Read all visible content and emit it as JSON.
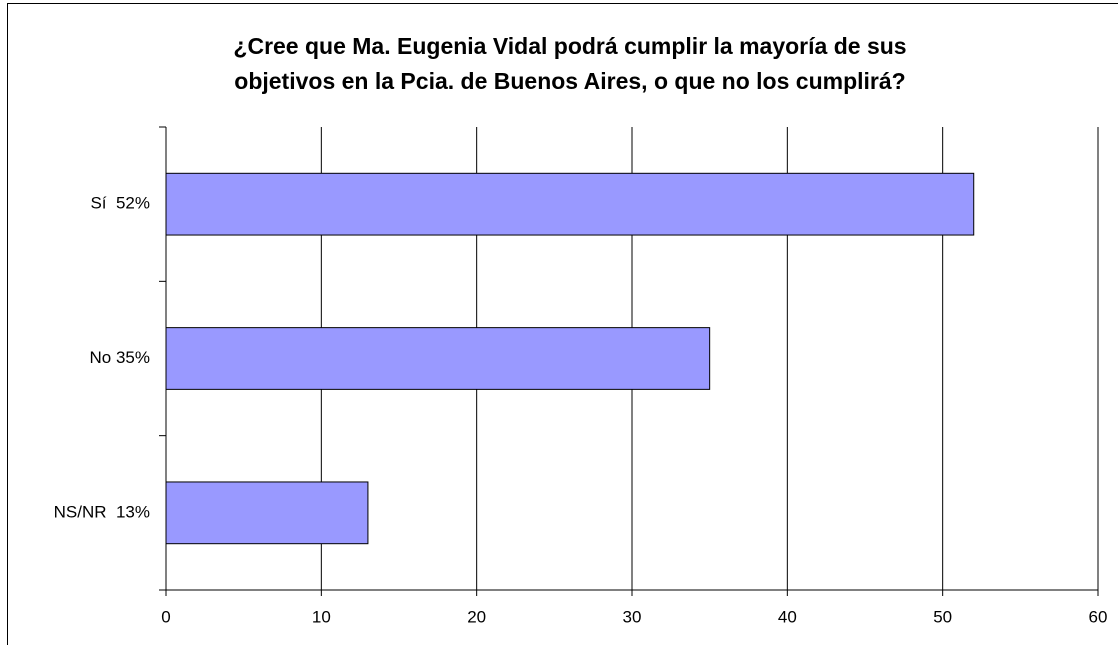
{
  "chart_data": {
    "type": "bar",
    "orientation": "horizontal",
    "title": [
      "¿Cree que Ma. Eugenia Vidal podrá cumplir la mayoría de sus",
      "objetivos en la Pcia. de Buenos Aires, o que no los cumplirá?"
    ],
    "categories": [
      "Sí  52%",
      "No 35%",
      "NS/NR  13%"
    ],
    "values": [
      52,
      35,
      13
    ],
    "color": "#9999ff",
    "xlim": [
      0,
      60
    ],
    "xticks": [
      0,
      10,
      20,
      30,
      40,
      50,
      60
    ],
    "grid": true
  }
}
